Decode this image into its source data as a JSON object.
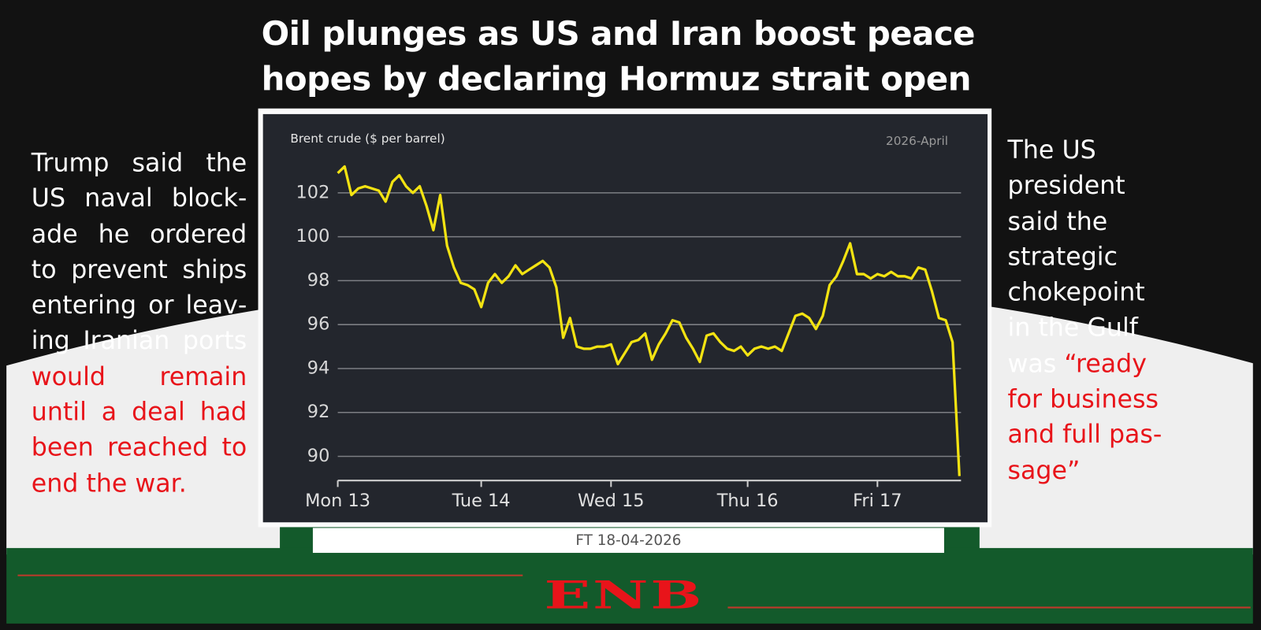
{
  "title": "Oil plunges as US and Iran boost peace hopes by declaring Hormuz strait open",
  "left_text": {
    "text": "Trump said the US naval block­ade he ordered to prevent ships entering or leav­ing Iranian ports",
    "highlight": "would remain until a deal had been reached to end the war."
  },
  "right_text": {
    "text": "The US president said the strategic chokepoint in the Gulf was",
    "highlight": "“ready for business and full pas­sage”"
  },
  "caption": "FT 18-04-2026",
  "logo": "ENB",
  "chart_data": {
    "type": "line",
    "title": "Brent crude ($ per barrel)",
    "subtitle": "2026-April",
    "categories": [
      "Mon 13",
      null,
      null,
      null,
      null,
      null,
      null,
      null,
      null,
      null,
      null,
      null,
      null,
      null,
      null,
      null,
      null,
      null,
      null,
      null,
      null,
      "Tue 14",
      null,
      null,
      null,
      null,
      null,
      null,
      null,
      null,
      null,
      null,
      null,
      null,
      null,
      null,
      null,
      null,
      null,
      null,
      "Wed 15",
      null,
      null,
      null,
      null,
      null,
      null,
      null,
      null,
      null,
      null,
      null,
      null,
      null,
      null,
      null,
      null,
      null,
      null,
      null,
      "Thu 16",
      null,
      null,
      null,
      null,
      null,
      null,
      null,
      null,
      null,
      null,
      null,
      null,
      null,
      null,
      null,
      null,
      null,
      null,
      "Fri 17",
      null,
      null,
      null,
      null,
      null,
      null,
      null,
      null,
      null,
      null,
      null,
      null
    ],
    "values": [
      102.9,
      103.2,
      101.9,
      102.2,
      102.3,
      102.2,
      102.1,
      101.6,
      102.5,
      102.8,
      102.3,
      102.0,
      102.3,
      101.4,
      100.3,
      101.9,
      99.6,
      98.6,
      97.9,
      97.8,
      97.6,
      96.8,
      97.9,
      98.3,
      97.9,
      98.2,
      98.7,
      98.3,
      98.5,
      98.7,
      98.9,
      98.6,
      97.7,
      95.4,
      96.3,
      95.0,
      94.9,
      94.9,
      95.0,
      95.0,
      95.1,
      94.2,
      94.7,
      95.2,
      95.3,
      95.6,
      94.4,
      95.1,
      95.6,
      96.2,
      96.1,
      95.4,
      94.9,
      94.3,
      95.5,
      95.6,
      95.2,
      94.9,
      94.8,
      95.0,
      94.6,
      94.9,
      95.0,
      94.9,
      95.0,
      94.8,
      95.6,
      96.4,
      96.5,
      96.3,
      95.8,
      96.4,
      97.8,
      98.2,
      98.9,
      99.7,
      98.3,
      98.3,
      98.1,
      98.3,
      98.2,
      98.4,
      98.2,
      98.2,
      98.1,
      98.6,
      98.5,
      97.5,
      96.3,
      96.2,
      95.2,
      89.1
    ],
    "color": "#f3e312",
    "ylim": [
      88.9,
      104
    ],
    "yticks": [
      90,
      92,
      94,
      96,
      98,
      100,
      102
    ],
    "grid": true
  }
}
